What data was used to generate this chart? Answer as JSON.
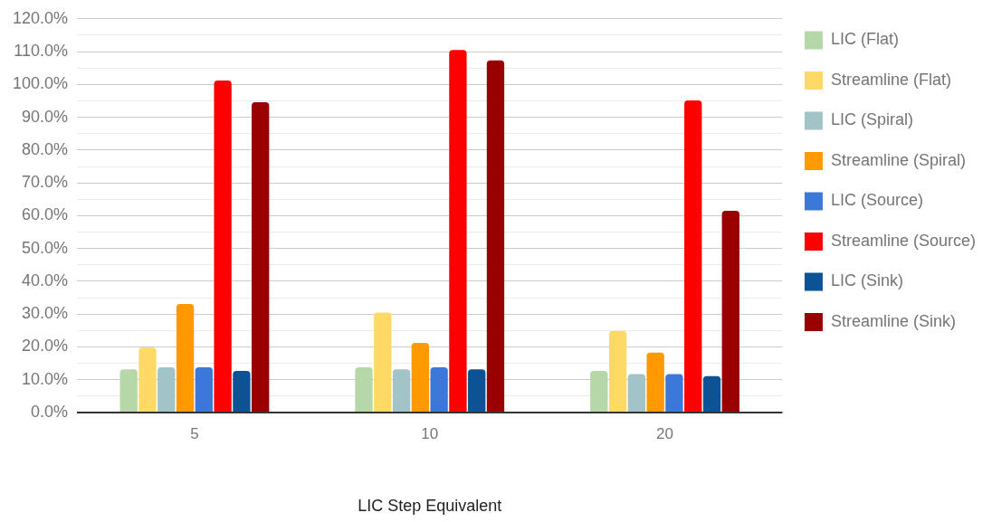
{
  "chart_data": {
    "type": "bar",
    "xlabel": "LIC Step Equivalent",
    "categories": [
      "5",
      "10",
      "20"
    ],
    "series": [
      {
        "name": "LIC (Flat)",
        "color": "#b6d7a8",
        "values": [
          13.2,
          13.8,
          12.7
        ]
      },
      {
        "name": "Streamline (Flat)",
        "color": "#ffd966",
        "values": [
          19.8,
          30.5,
          24.9
        ]
      },
      {
        "name": "LIC (Spiral)",
        "color": "#a2c4c9",
        "values": [
          13.8,
          13.2,
          11.7
        ]
      },
      {
        "name": "Streamline (Spiral)",
        "color": "#ff9900",
        "values": [
          33.1,
          21.2,
          18.3
        ]
      },
      {
        "name": "LIC (Source)",
        "color": "#3c78d8",
        "values": [
          13.8,
          13.8,
          11.7
        ]
      },
      {
        "name": "Streamline (Source)",
        "color": "#ff0000",
        "values": [
          101.2,
          110.5,
          95.1
        ]
      },
      {
        "name": "LIC (Sink)",
        "color": "#0b5394",
        "values": [
          12.7,
          13.2,
          11.1
        ]
      },
      {
        "name": "Streamline (Sink)",
        "color": "#990000",
        "values": [
          94.6,
          107.3,
          61.5
        ]
      }
    ],
    "ylim": [
      0,
      120
    ],
    "yticks": [
      {
        "value": 0,
        "label": "0.0%"
      },
      {
        "value": 5,
        "label": null
      },
      {
        "value": 10,
        "label": "10.0%"
      },
      {
        "value": 15,
        "label": null
      },
      {
        "value": 20,
        "label": "20.0%"
      },
      {
        "value": 25,
        "label": null
      },
      {
        "value": 30,
        "label": "30.0%"
      },
      {
        "value": 35,
        "label": null
      },
      {
        "value": 40,
        "label": "40.0%"
      },
      {
        "value": 45,
        "label": null
      },
      {
        "value": 50,
        "label": "50.0%"
      },
      {
        "value": 55,
        "label": null
      },
      {
        "value": 60,
        "label": "60.0%"
      },
      {
        "value": 65,
        "label": null
      },
      {
        "value": 70,
        "label": "70.0%"
      },
      {
        "value": 75,
        "label": null
      },
      {
        "value": 80,
        "label": "80.0%"
      },
      {
        "value": 85,
        "label": null
      },
      {
        "value": 90,
        "label": "90.0%"
      },
      {
        "value": 95,
        "label": null
      },
      {
        "value": 100,
        "label": "100.0%"
      },
      {
        "value": 105,
        "label": null
      },
      {
        "value": 110,
        "label": "110.0%"
      },
      {
        "value": 115,
        "label": null
      },
      {
        "value": 120,
        "label": "120.0%"
      }
    ],
    "grid": "y",
    "legend": "right"
  }
}
